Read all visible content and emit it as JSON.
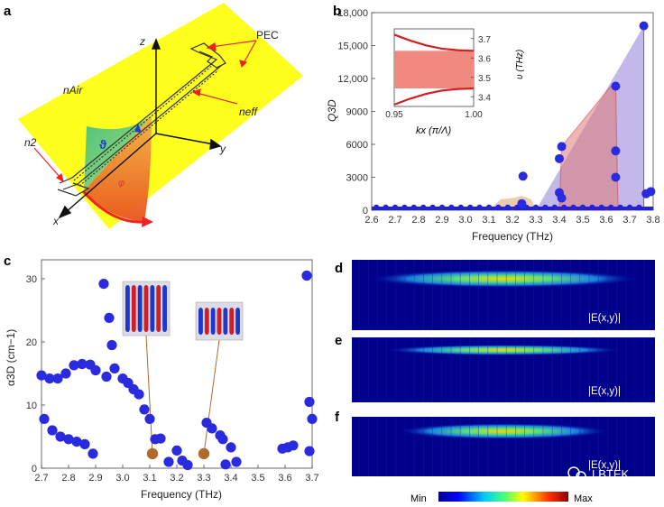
{
  "panels": {
    "a": {
      "letter": "a",
      "labels": {
        "z": "z",
        "y": "y",
        "x": "x",
        "pec": "PEC",
        "n_air": "nAir",
        "n_eff": "neff",
        "n_2": "n2",
        "theta": "ϑ",
        "phi": "φ"
      }
    },
    "b": {
      "letter": "b"
    },
    "c": {
      "letter": "c"
    },
    "d": {
      "letter": "d",
      "label": "|E(x,y)|"
    },
    "e": {
      "letter": "e",
      "label": "|E(x,y)|"
    },
    "f": {
      "letter": "f",
      "label": "|E(x,y)|"
    }
  },
  "colorbar": {
    "min_label": "Min",
    "max_label": "Max"
  },
  "watermark": "LBTEK",
  "chart_data": [
    {
      "id": "panel-b",
      "type": "scatter",
      "xlabel": "Frequency (THz)",
      "ylabel": "Q3D",
      "xlim": [
        2.6,
        3.8
      ],
      "ylim": [
        0,
        18000
      ],
      "xticks": [
        "2.6",
        "2.7",
        "2.8",
        "2.9",
        "3.0",
        "3.1",
        "3.2",
        "3.3",
        "3.4",
        "3.5",
        "3.6",
        "3.7",
        "3.8"
      ],
      "yticks": [
        "0",
        "3000",
        "6000",
        "9000",
        "12,000",
        "15,000",
        "18,000"
      ],
      "points": [
        {
          "x": 3.24,
          "y": 600
        },
        {
          "x": 3.245,
          "y": 3100
        },
        {
          "x": 3.4,
          "y": 4700
        },
        {
          "x": 3.41,
          "y": 5800
        },
        {
          "x": 3.4,
          "y": 1600
        },
        {
          "x": 3.41,
          "y": 1100
        },
        {
          "x": 3.64,
          "y": 11300
        },
        {
          "x": 3.64,
          "y": 5400
        },
        {
          "x": 3.64,
          "y": 3000
        },
        {
          "x": 3.76,
          "y": 16800
        },
        {
          "x": 3.77,
          "y": 1500
        },
        {
          "x": 3.79,
          "y": 1700
        }
      ],
      "baseline_points_x": [
        2.62,
        2.66,
        2.7,
        2.74,
        2.78,
        2.82,
        2.86,
        2.9,
        2.94,
        2.98,
        3.02,
        3.06,
        3.1,
        3.14,
        3.18,
        3.22,
        3.26,
        3.3,
        3.34,
        3.38,
        3.42,
        3.46,
        3.5,
        3.54,
        3.58,
        3.62,
        3.66,
        3.7,
        3.74
      ],
      "shaded_regions": [
        {
          "name": "purple",
          "color": "#8f7fd6",
          "x": [
            3.3,
            3.76,
            3.76
          ],
          "y": [
            0,
            16800,
            0
          ]
        },
        {
          "name": "red",
          "color": "#e07b7b",
          "x": [
            3.4,
            3.41,
            3.62,
            3.64,
            3.65
          ],
          "y": [
            0,
            5800,
            11300,
            11300,
            0
          ]
        },
        {
          "name": "tan-left",
          "color": "#d9a36a",
          "x": [
            3.1,
            3.15,
            3.2,
            3.24,
            3.28,
            3.3
          ],
          "y": [
            0,
            1000,
            1100,
            1300,
            1000,
            0
          ]
        }
      ],
      "inset": {
        "type": "line",
        "xlabel": "kx (π/Λ)",
        "ylabel": "υ (THz)",
        "xlim": [
          0.95,
          1.0
        ],
        "ylim": [
          3.35,
          3.75
        ],
        "xticks": [
          "0.95",
          "1.00"
        ],
        "yticks": [
          "3.4",
          "3.5",
          "3.6",
          "3.7"
        ],
        "series": [
          {
            "x": [
              0.95,
              0.96,
              0.97,
              0.98,
              0.99,
              1.0
            ],
            "y": [
              3.72,
              3.69,
              3.665,
              3.648,
              3.64,
              3.637
            ]
          },
          {
            "x": [
              0.95,
              0.96,
              0.97,
              0.98,
              0.99,
              1.0
            ],
            "y": [
              3.36,
              3.39,
              3.415,
              3.432,
              3.44,
              3.443
            ]
          }
        ],
        "band_gap": [
          3.443,
          3.637
        ]
      }
    },
    {
      "id": "panel-c",
      "type": "scatter",
      "xlabel": "Frequency (THz)",
      "ylabel": "α3D (cm−1)",
      "xlim": [
        2.7,
        3.7
      ],
      "ylim": [
        0,
        33
      ],
      "xticks": [
        "2.7",
        "2.8",
        "2.9",
        "3.0",
        "3.1",
        "3.2",
        "3.3",
        "3.4",
        "3.5",
        "3.6",
        "3.7"
      ],
      "yticks": [
        "0",
        "10",
        "20",
        "30"
      ],
      "points": [
        {
          "x": 2.7,
          "y": 14.7
        },
        {
          "x": 2.73,
          "y": 14.2
        },
        {
          "x": 2.76,
          "y": 14.2
        },
        {
          "x": 2.79,
          "y": 15
        },
        {
          "x": 2.82,
          "y": 16.3
        },
        {
          "x": 2.85,
          "y": 16.5
        },
        {
          "x": 2.88,
          "y": 16.4
        },
        {
          "x": 2.9,
          "y": 15.5
        },
        {
          "x": 2.93,
          "y": 29.2
        },
        {
          "x": 2.94,
          "y": 14.5
        },
        {
          "x": 2.95,
          "y": 23.8
        },
        {
          "x": 2.96,
          "y": 19.5
        },
        {
          "x": 2.97,
          "y": 15.8
        },
        {
          "x": 3.0,
          "y": 14.2
        },
        {
          "x": 3.02,
          "y": 13.5
        },
        {
          "x": 3.04,
          "y": 12.5
        },
        {
          "x": 3.06,
          "y": 11.7
        },
        {
          "x": 3.08,
          "y": 9.3
        },
        {
          "x": 3.1,
          "y": 7.8
        },
        {
          "x": 3.12,
          "y": 4.6
        },
        {
          "x": 3.14,
          "y": 4.7
        },
        {
          "x": 3.17,
          "y": 1.0
        },
        {
          "x": 3.2,
          "y": 2.8
        },
        {
          "x": 3.22,
          "y": 1.2
        },
        {
          "x": 3.24,
          "y": 0.5
        },
        {
          "x": 3.31,
          "y": 7.2
        },
        {
          "x": 3.33,
          "y": 6.3
        },
        {
          "x": 3.36,
          "y": 5.2
        },
        {
          "x": 3.37,
          "y": 4.6
        },
        {
          "x": 3.4,
          "y": 3.3
        },
        {
          "x": 3.42,
          "y": 1.0
        },
        {
          "x": 3.38,
          "y": 0.6
        },
        {
          "x": 3.59,
          "y": 3.1
        },
        {
          "x": 3.61,
          "y": 3.3
        },
        {
          "x": 3.63,
          "y": 3.6
        },
        {
          "x": 3.68,
          "y": 30.5
        },
        {
          "x": 3.69,
          "y": 10.5
        },
        {
          "x": 3.7,
          "y": 7.8
        },
        {
          "x": 3.69,
          "y": 2.7
        },
        {
          "x": 2.71,
          "y": 7.8
        },
        {
          "x": 2.74,
          "y": 6.0
        },
        {
          "x": 2.77,
          "y": 5.0
        },
        {
          "x": 2.8,
          "y": 4.6
        },
        {
          "x": 2.83,
          "y": 4.2
        },
        {
          "x": 2.86,
          "y": 3.8
        },
        {
          "x": 2.89,
          "y": 2.3
        }
      ],
      "highlight_points": [
        {
          "x": 3.11,
          "y": 2.3
        },
        {
          "x": 3.3,
          "y": 2.3
        }
      ],
      "highlight_color": "#b06a2a",
      "point_color": "#2a2adf"
    }
  ]
}
